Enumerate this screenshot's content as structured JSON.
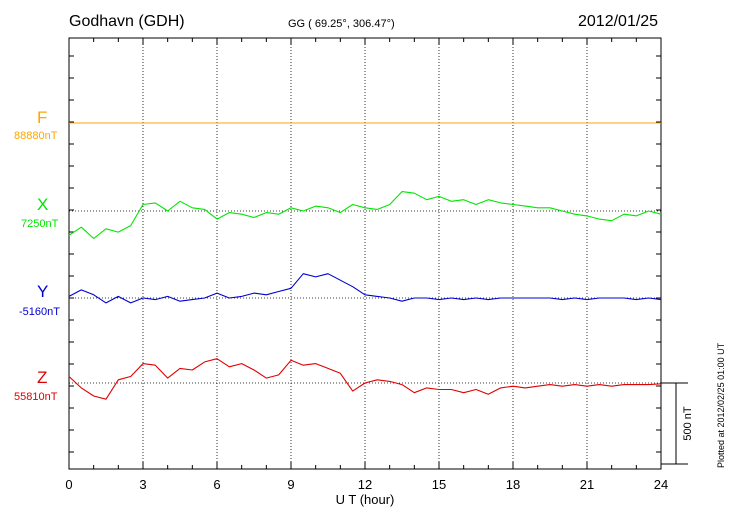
{
  "header": {
    "station": "Godhavn (GDH)",
    "coords": "GG ( 69.25°, 306.47°)",
    "date": "2012/01/25"
  },
  "scale_label": "500 nT",
  "plotted_stamp": "Plotted at 2012/02/25 01:00 UT",
  "colors": {
    "F": "#ffa500",
    "X": "#00e600",
    "Y": "#0000d0",
    "Z": "#e00000"
  },
  "chart_data": {
    "type": "line",
    "xlabel": "U T (hour)",
    "xlim": [
      0,
      24
    ],
    "x_ticks": [
      "0",
      "3",
      "6",
      "9",
      "12",
      "15",
      "18",
      "21",
      "24"
    ],
    "grid": true,
    "y_units": "nT",
    "scale_bar_nT": 500,
    "series": [
      {
        "name": "F",
        "baseline_label": "88880nT",
        "x": [
          0,
          24
        ],
        "values": [
          0,
          0
        ]
      },
      {
        "name": "X",
        "baseline_label": "7250nT",
        "x": [
          0,
          0.5,
          1,
          1.5,
          2,
          2.5,
          3,
          3.5,
          4,
          4.5,
          5,
          5.5,
          6,
          6.5,
          7,
          7.5,
          8,
          8.5,
          9,
          9.5,
          10,
          10.5,
          11,
          11.5,
          12,
          12.5,
          13,
          13.5,
          14,
          14.5,
          15,
          15.5,
          16,
          16.5,
          17,
          17.5,
          18,
          18.5,
          19,
          19.5,
          20,
          20.5,
          21,
          21.5,
          22,
          22.5,
          23,
          23.5,
          24
        ],
        "values": [
          -150,
          -100,
          -170,
          -110,
          -130,
          -90,
          40,
          50,
          0,
          60,
          20,
          10,
          -50,
          -10,
          -20,
          -40,
          -10,
          -20,
          20,
          0,
          30,
          20,
          -10,
          40,
          20,
          10,
          40,
          120,
          110,
          70,
          90,
          60,
          70,
          40,
          70,
          50,
          40,
          30,
          20,
          20,
          0,
          -20,
          -30,
          -50,
          -60,
          -20,
          -30,
          0,
          -20
        ]
      },
      {
        "name": "Y",
        "baseline_label": "-5160nT",
        "x": [
          0,
          0.5,
          1,
          1.5,
          2,
          2.5,
          3,
          3.5,
          4,
          4.5,
          5,
          5.5,
          6,
          6.5,
          7,
          7.5,
          8,
          8.5,
          9,
          9.5,
          10,
          10.5,
          11,
          11.5,
          12,
          12.5,
          13,
          13.5,
          14,
          14.5,
          15,
          15.5,
          16,
          16.5,
          17,
          17.5,
          18,
          18.5,
          19,
          19.5,
          20,
          20.5,
          21,
          21.5,
          22,
          22.5,
          23,
          23.5,
          24
        ],
        "values": [
          10,
          50,
          20,
          -30,
          10,
          -30,
          0,
          -10,
          10,
          -20,
          -10,
          0,
          30,
          0,
          10,
          30,
          20,
          40,
          60,
          150,
          130,
          150,
          110,
          70,
          20,
          10,
          0,
          -20,
          0,
          0,
          -10,
          0,
          -10,
          0,
          -10,
          0,
          0,
          0,
          0,
          0,
          -10,
          0,
          -10,
          0,
          0,
          0,
          -10,
          0,
          -10
        ]
      },
      {
        "name": "Z",
        "baseline_label": "55810nT",
        "x": [
          0,
          0.5,
          1,
          1.5,
          2,
          2.5,
          3,
          3.5,
          4,
          4.5,
          5,
          5.5,
          6,
          6.5,
          7,
          7.5,
          8,
          8.5,
          9,
          9.5,
          10,
          10.5,
          11,
          11.5,
          12,
          12.5,
          13,
          13.5,
          14,
          14.5,
          15,
          15.5,
          16,
          16.5,
          17,
          17.5,
          18,
          18.5,
          19,
          19.5,
          20,
          20.5,
          21,
          21.5,
          22,
          22.5,
          23,
          23.5,
          24
        ],
        "values": [
          40,
          -30,
          -80,
          -100,
          20,
          40,
          120,
          110,
          30,
          90,
          80,
          130,
          150,
          100,
          120,
          80,
          30,
          50,
          140,
          110,
          120,
          90,
          60,
          -50,
          0,
          20,
          10,
          -10,
          -60,
          -30,
          -40,
          -40,
          -60,
          -40,
          -70,
          -30,
          -20,
          -30,
          -20,
          -10,
          -20,
          -10,
          -20,
          -10,
          -20,
          -10,
          -10,
          -10,
          -5
        ]
      }
    ]
  }
}
